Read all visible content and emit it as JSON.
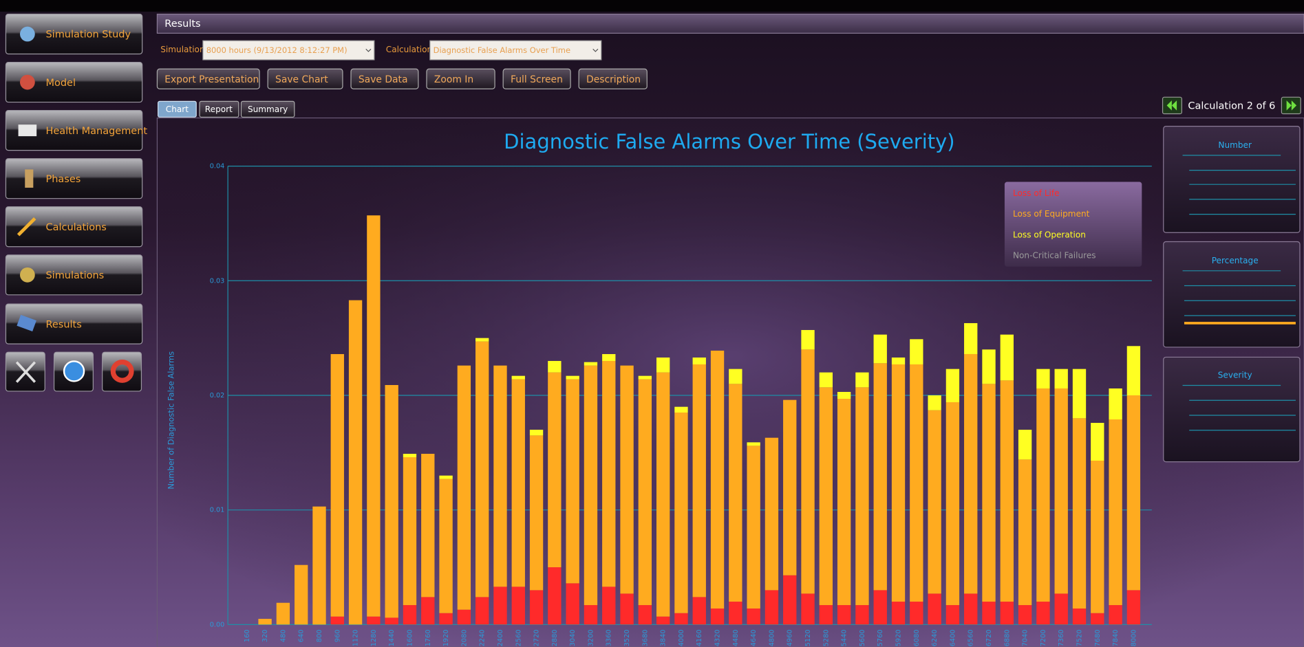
{
  "header": {
    "title": "Results"
  },
  "sidebar": {
    "items": [
      "Simulation Study",
      "Model",
      "Health Management",
      "Phases",
      "Calculations",
      "Simulations",
      "Results"
    ]
  },
  "selectors": {
    "simulation_label": "Simulation",
    "simulation_value": "8000 hours (9/13/2012 8:12:27 PM)",
    "calculation_label": "Calculation",
    "calculation_value": "Diagnostic False Alarms Over Time"
  },
  "toolbar": [
    "Export Presentation",
    "Save Chart",
    "Save Data",
    "Zoom In",
    "Full Screen",
    "Description"
  ],
  "tabs": [
    "Chart",
    "Report",
    "Summary"
  ],
  "pager": "Calculation 2 of 6",
  "thumbnails": [
    "Number",
    "Percentage",
    "Severity"
  ],
  "chart_data": {
    "type": "bar",
    "stacked": true,
    "title": "Diagnostic False Alarms Over Time (Severity)",
    "y_label": "Number of Diagnostic False Alarms",
    "legend": "top-right",
    "grid": true,
    "categories": [
      "160",
      "320",
      "480",
      "640",
      "800",
      "960",
      "1120",
      "1280",
      "1440",
      "1600",
      "1760",
      "1920",
      "2080",
      "2240",
      "2400",
      "2560",
      "2720",
      "2880",
      "3040",
      "3200",
      "3360",
      "3520",
      "3680",
      "3840",
      "4000",
      "4160",
      "4320",
      "4480",
      "4640",
      "4800",
      "4960",
      "5120",
      "5280",
      "5440",
      "5600",
      "5760",
      "5920",
      "6080",
      "6240",
      "6400",
      "6560",
      "6720",
      "6880",
      "7040",
      "7200",
      "7360",
      "7520",
      "7680",
      "7840",
      "8000"
    ],
    "ylim": [
      0,
      0.04
    ],
    "yticks": [
      {
        "value": 0,
        "label": "0.00"
      },
      {
        "value": 0.01,
        "label": "0.01"
      },
      {
        "value": 0.02,
        "label": "0.02"
      },
      {
        "value": 0.03,
        "label": "0.03"
      },
      {
        "value": 0.04,
        "label": "0.04"
      }
    ],
    "series": [
      {
        "name": "Loss of Life",
        "color": "#ff2a2a",
        "values": [
          0,
          0,
          0,
          0,
          0,
          0.0007,
          0,
          0.0007,
          0.0006,
          0.0017,
          0.0024,
          0.001,
          0.0013,
          0.0024,
          0.0033,
          0.0033,
          0.003,
          0.005,
          0.0036,
          0.0017,
          0.0033,
          0.0027,
          0.0017,
          0.0007,
          0.001,
          0.0024,
          0.0014,
          0.002,
          0.0014,
          0.003,
          0.0043,
          0.0027,
          0.0017,
          0.0017,
          0.0017,
          0.003,
          0.002,
          0.002,
          0.0027,
          0.0017,
          0.0027,
          0.002,
          0.002,
          0.0017,
          0.002,
          0.0027,
          0.0014,
          0.001,
          0.0017,
          0.003
        ]
      },
      {
        "name": "Loss of Equipment",
        "color": "#ffab1f",
        "values": [
          0,
          0.0005,
          0.0019,
          0.0052,
          0.0103,
          0.0229,
          0.0283,
          0.035,
          0.0203,
          0.0129,
          0.0125,
          0.0117,
          0.0213,
          0.0223,
          0.0193,
          0.0181,
          0.0135,
          0.017,
          0.0178,
          0.0209,
          0.0197,
          0.0199,
          0.0197,
          0.0213,
          0.0175,
          0.0203,
          0.0225,
          0.019,
          0.0142,
          0.0133,
          0.0153,
          0.0213,
          0.019,
          0.018,
          0.019,
          0.0198,
          0.0207,
          0.0207,
          0.016,
          0.0177,
          0.0209,
          0.019,
          0.0193,
          0.0127,
          0.0186,
          0.0179,
          0.0166,
          0.0133,
          0.0162,
          0.017
        ]
      },
      {
        "name": "Loss of Operation",
        "color": "#ffff22",
        "values": [
          0,
          0,
          0,
          0,
          0,
          0,
          0,
          0,
          0,
          0.0003,
          0,
          0.0003,
          0,
          0.0003,
          0,
          0.0003,
          0.0005,
          0.001,
          0.0003,
          0.0003,
          0.0006,
          0,
          0.0003,
          0.0013,
          0.0005,
          0.0006,
          0,
          0.0013,
          0.0003,
          0,
          0,
          0.0017,
          0.0013,
          0.0006,
          0.0013,
          0.0025,
          0.0006,
          0.0022,
          0.0013,
          0.0029,
          0.0027,
          0.003,
          0.004,
          0.0026,
          0.0017,
          0.0017,
          0.0043,
          0.0033,
          0.0027,
          0.0043
        ]
      },
      {
        "name": "Non-Critical Failures",
        "color": "#9a9a9a",
        "values": [
          0,
          0,
          0,
          0,
          0,
          0,
          0,
          0,
          0,
          0,
          0,
          0,
          0,
          0,
          0,
          0,
          0,
          0,
          0,
          0,
          0,
          0,
          0,
          0,
          0,
          0,
          0,
          0,
          0,
          0,
          0,
          0,
          0,
          0,
          0,
          0,
          0,
          0,
          0,
          0,
          0,
          0,
          0,
          0,
          0,
          0,
          0,
          0,
          0,
          0
        ]
      }
    ]
  }
}
